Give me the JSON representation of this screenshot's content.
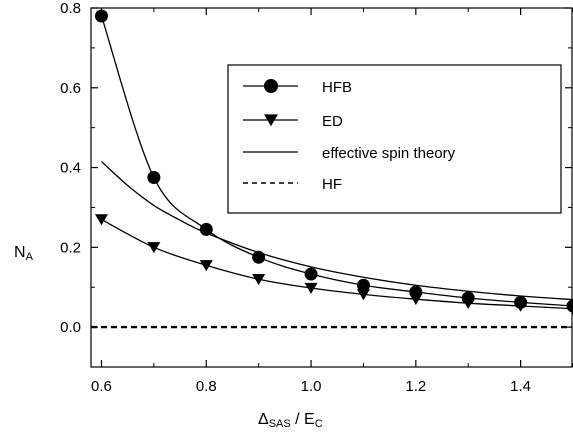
{
  "chart_data": {
    "type": "line",
    "xlabel": {
      "main": "Δ",
      "main_sub": "SAS",
      "sep": " / E",
      "sep_sub": "C"
    },
    "ylabel": {
      "main": "N",
      "sub": "A"
    },
    "xlim": [
      0.58,
      1.5
    ],
    "ylim": [
      -0.1,
      0.8
    ],
    "xticks": [
      0.6,
      0.8,
      1.0,
      1.2,
      1.4
    ],
    "xtick_labels": [
      "0.6",
      "0.8",
      "1.0",
      "1.2",
      "1.4"
    ],
    "yticks": [
      0.0,
      0.2,
      0.4,
      0.6,
      0.8
    ],
    "ytick_labels": [
      "0.0",
      "0.2",
      "0.4",
      "0.6",
      "0.8"
    ],
    "legend_position": "top-right",
    "series": [
      {
        "name": "HFB",
        "style": "line-circle",
        "x": [
          0.6,
          0.7,
          0.8,
          0.9,
          1.0,
          1.1,
          1.2,
          1.3,
          1.4,
          1.5
        ],
        "y": [
          0.78,
          0.375,
          0.245,
          0.175,
          0.133,
          0.105,
          0.088,
          0.073,
          0.062,
          0.053
        ]
      },
      {
        "name": "ED",
        "style": "line-triangle-down",
        "x": [
          0.6,
          0.7,
          0.8,
          0.9,
          1.0,
          1.1,
          1.2,
          1.3,
          1.4,
          1.5
        ],
        "y": [
          0.27,
          0.2,
          0.155,
          0.12,
          0.098,
          0.082,
          0.07,
          0.06,
          0.053,
          0.046
        ]
      },
      {
        "name": "effective spin theory",
        "style": "solid",
        "x": [
          0.6,
          0.65,
          0.7,
          0.75,
          0.8,
          0.9,
          1.0,
          1.1,
          1.2,
          1.3,
          1.4,
          1.5
        ],
        "y": [
          0.415,
          0.355,
          0.305,
          0.268,
          0.236,
          0.187,
          0.151,
          0.125,
          0.105,
          0.09,
          0.078,
          0.069
        ]
      },
      {
        "name": "HF",
        "style": "dashed",
        "x": [
          0.58,
          1.5
        ],
        "y": [
          0.0,
          0.0
        ]
      }
    ]
  }
}
